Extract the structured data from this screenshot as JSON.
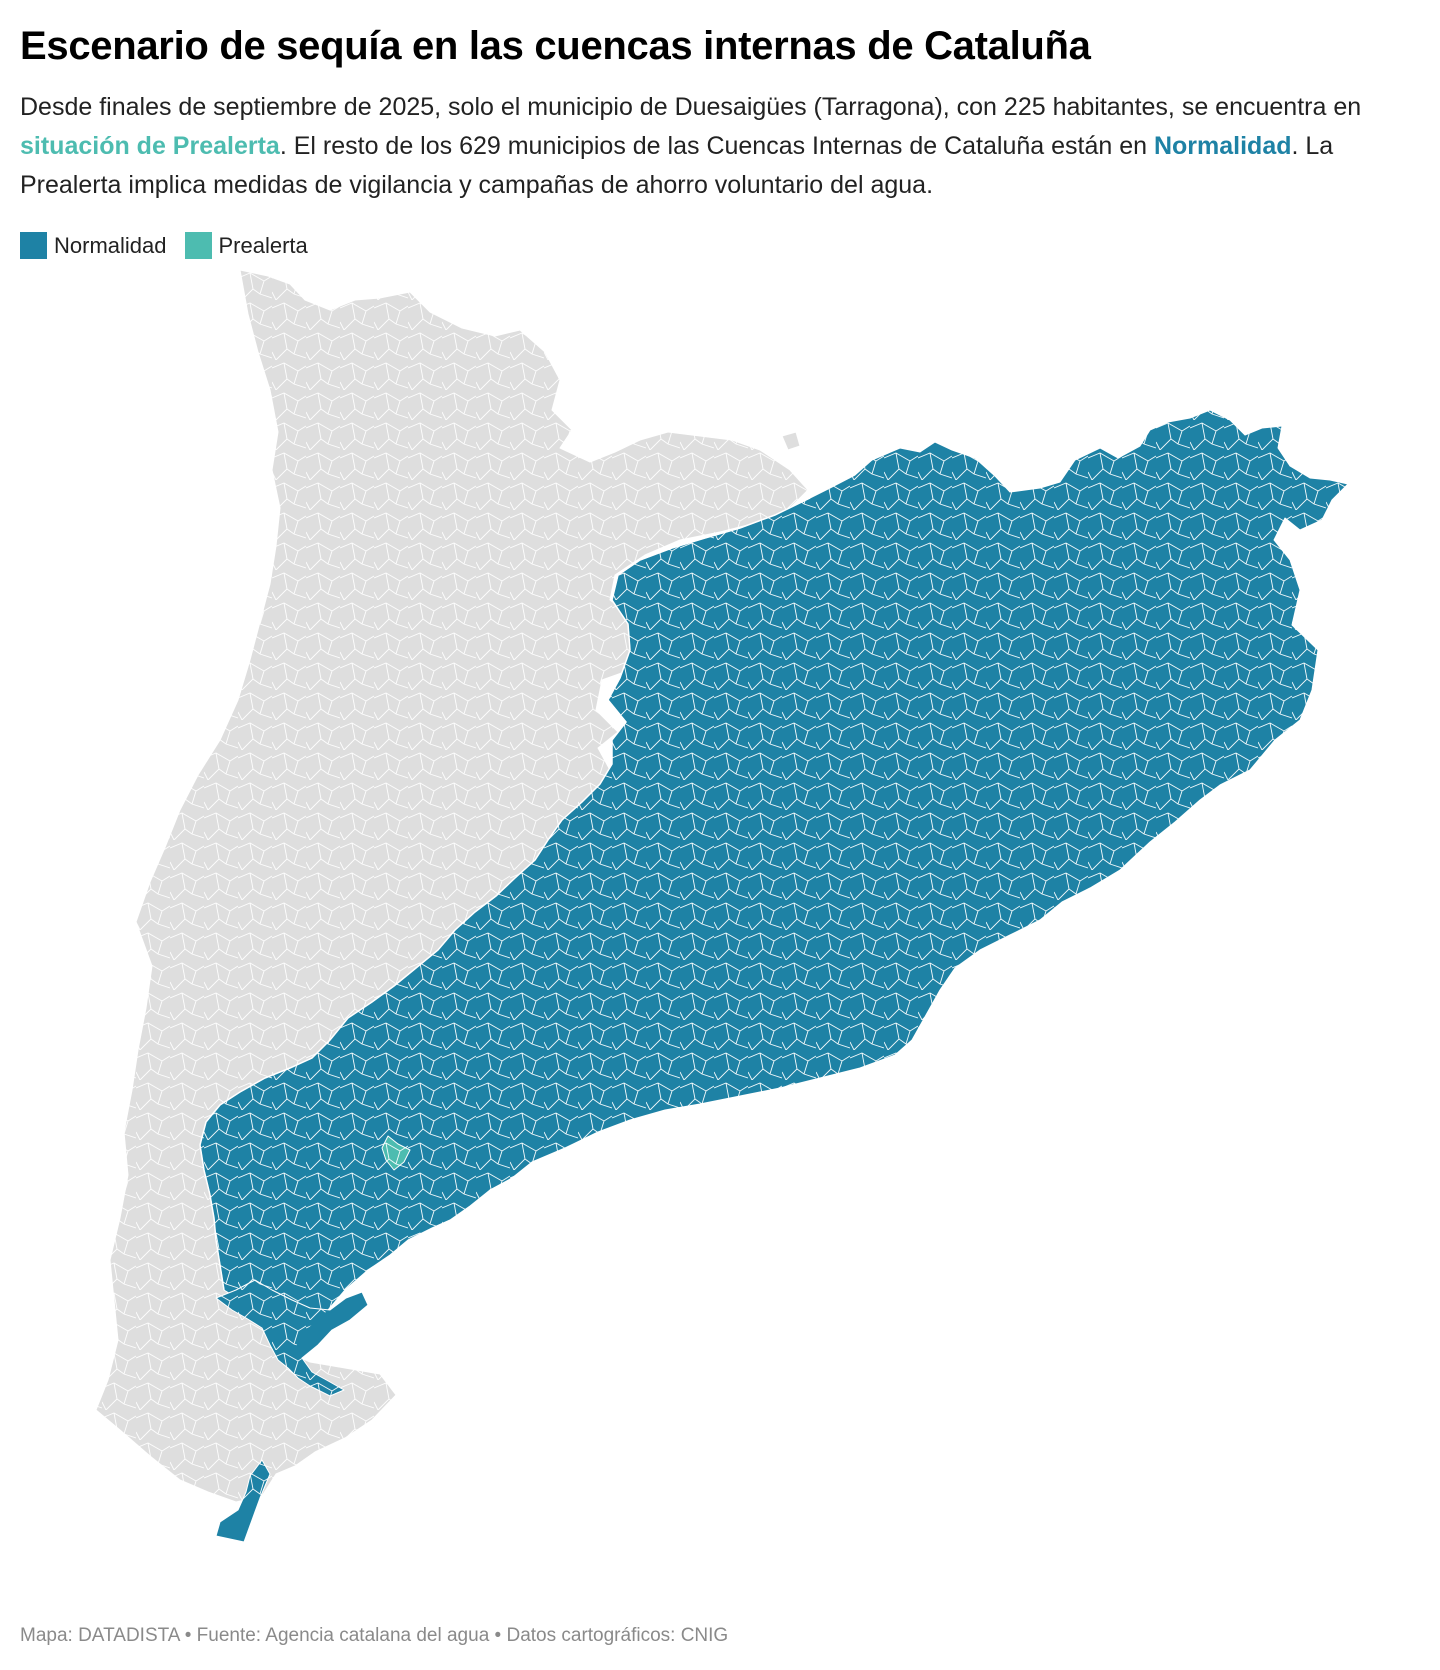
{
  "title": "Escenario de sequía en las cuencas internas de Cataluña",
  "subtitle": {
    "part1": "Desde finales de septiembre de 2025, solo el municipio de Duesaigües (Tarragona), con 225 habitantes, se encuentra en ",
    "highlight_prealerta": "situación de Prealerta",
    "part2": ". El resto de los 629 municipios de las Cuencas Internas de Cataluña están en ",
    "highlight_normalidad": "Normalidad",
    "part3": ". La Prealerta implica medidas de vigilancia y campañas de ahorro voluntario del agua."
  },
  "legend": [
    {
      "label": "Normalidad",
      "color": "#1e82a5"
    },
    {
      "label": "Prealerta",
      "color": "#4dbcb0"
    }
  ],
  "map": {
    "outside_basin_color": "#dedede",
    "border_color": "#ffffff",
    "categories": {
      "normalidad": "#1e82a5",
      "prealerta": "#4dbcb0"
    }
  },
  "footer": "Mapa: DATADISTA • Fuente: Agencia catalana del agua • Datos cartográficos: CNIG"
}
